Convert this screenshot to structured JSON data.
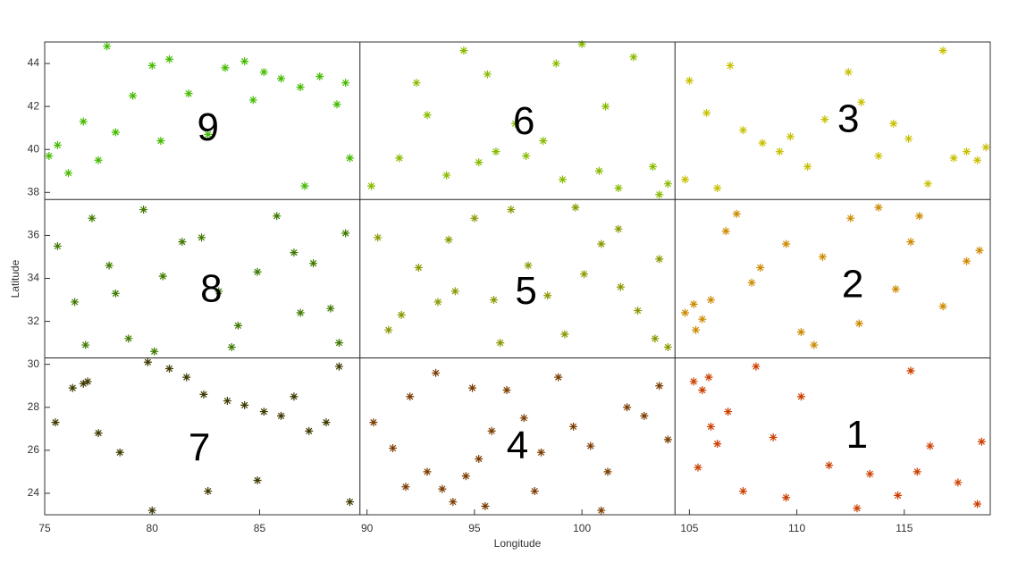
{
  "chart_data": {
    "type": "scatter",
    "xlabel": "Longitude",
    "ylabel": "Latitude",
    "xlim": [
      75,
      119
    ],
    "ylim": [
      23,
      45
    ],
    "xticks": [
      75,
      80,
      85,
      90,
      95,
      100,
      105,
      110,
      115
    ],
    "yticks": [
      24,
      26,
      28,
      30,
      32,
      34,
      36,
      38,
      40,
      42,
      44
    ],
    "region_boundaries": {
      "x": [
        89.67,
        104.33
      ],
      "y": [
        30.3,
        37.67
      ]
    },
    "annotations": [
      {
        "text": "1",
        "x": 112.8,
        "y": 26.6
      },
      {
        "text": "2",
        "x": 112.6,
        "y": 33.6
      },
      {
        "text": "3",
        "x": 112.4,
        "y": 41.3
      },
      {
        "text": "4",
        "x": 97.0,
        "y": 26.1
      },
      {
        "text": "5",
        "x": 97.4,
        "y": 33.3
      },
      {
        "text": "6",
        "x": 97.3,
        "y": 41.2
      },
      {
        "text": "7",
        "x": 82.2,
        "y": 26.0
      },
      {
        "text": "8",
        "x": 82.75,
        "y": 33.4
      },
      {
        "text": "9",
        "x": 82.6,
        "y": 40.9
      }
    ],
    "series": [
      {
        "color": "#cc3f00",
        "x": [
          105.2,
          105.6,
          105.9,
          106.3,
          105.4,
          106.8,
          107.5,
          108.1,
          108.9,
          110.2,
          111.5,
          112.8,
          113.4,
          114.7,
          115.3,
          116.2,
          117.5,
          118.6,
          118.4,
          106.0,
          109.5,
          115.6
        ],
        "values": [
          29.2,
          28.8,
          29.4,
          26.3,
          25.2,
          27.8,
          24.1,
          29.9,
          26.6,
          28.5,
          25.3,
          23.3,
          24.9,
          23.9,
          29.7,
          26.2,
          24.5,
          26.4,
          23.5,
          27.1,
          23.8,
          25.0
        ]
      },
      {
        "color": "#cc8a00",
        "x": [
          104.8,
          105.2,
          105.6,
          106.0,
          105.3,
          106.7,
          107.2,
          108.3,
          109.5,
          110.8,
          111.2,
          112.5,
          113.8,
          114.6,
          115.3,
          116.8,
          117.9,
          118.5,
          110.2,
          112.9,
          107.9,
          115.7
        ],
        "values": [
          32.4,
          32.8,
          32.1,
          33.0,
          31.6,
          36.2,
          37.0,
          34.5,
          35.6,
          30.9,
          35.0,
          36.8,
          37.3,
          33.5,
          35.7,
          32.7,
          34.8,
          35.3,
          31.5,
          31.9,
          33.8,
          36.9
        ]
      },
      {
        "color": "#c8c000",
        "x": [
          105.0,
          105.8,
          106.9,
          107.5,
          108.4,
          109.7,
          110.5,
          111.3,
          112.4,
          113.8,
          114.5,
          115.2,
          116.1,
          117.3,
          117.9,
          118.4,
          118.8,
          106.3,
          109.2,
          113.0,
          116.8,
          104.8
        ],
        "values": [
          43.2,
          41.7,
          43.9,
          40.9,
          40.3,
          40.6,
          39.2,
          41.4,
          43.6,
          39.7,
          41.2,
          40.5,
          38.4,
          39.6,
          39.9,
          39.5,
          40.1,
          38.2,
          39.9,
          42.2,
          44.6,
          38.6
        ]
      },
      {
        "color": "#7a3c00",
        "x": [
          90.3,
          91.2,
          92.0,
          92.8,
          93.5,
          94.0,
          94.6,
          95.2,
          95.8,
          96.5,
          97.3,
          98.1,
          98.9,
          99.6,
          100.4,
          101.2,
          102.1,
          102.9,
          103.6,
          104.0,
          93.2,
          95.5,
          97.8,
          100.9,
          91.8,
          94.9
        ],
        "values": [
          27.3,
          26.1,
          28.5,
          25.0,
          24.2,
          23.6,
          24.8,
          25.6,
          26.9,
          28.8,
          27.5,
          25.9,
          29.4,
          27.1,
          26.2,
          25.0,
          28.0,
          27.6,
          29.0,
          26.5,
          29.6,
          23.4,
          24.1,
          23.2,
          24.3,
          28.9
        ]
      },
      {
        "color": "#8a9800",
        "x": [
          90.5,
          91.6,
          92.4,
          93.3,
          94.1,
          95.0,
          95.9,
          96.7,
          97.5,
          98.4,
          99.2,
          100.1,
          100.9,
          101.7,
          102.6,
          103.4,
          104.0,
          91.0,
          93.8,
          96.2,
          99.7,
          101.8,
          103.6
        ],
        "values": [
          35.9,
          32.3,
          34.5,
          32.9,
          33.4,
          36.8,
          33.0,
          37.2,
          34.6,
          33.2,
          31.4,
          34.2,
          35.6,
          36.3,
          32.5,
          31.2,
          30.8,
          31.6,
          35.8,
          31.0,
          37.3,
          33.6,
          34.9
        ]
      },
      {
        "color": "#88bb00",
        "x": [
          90.2,
          91.5,
          92.3,
          93.7,
          94.5,
          95.2,
          96.0,
          96.9,
          97.4,
          98.2,
          99.1,
          100.0,
          100.8,
          101.7,
          102.4,
          103.3,
          104.0,
          92.8,
          98.8,
          101.1,
          95.6,
          103.6
        ],
        "values": [
          38.3,
          39.6,
          43.1,
          38.8,
          44.6,
          39.4,
          39.9,
          41.2,
          39.7,
          40.4,
          38.6,
          44.9,
          39.0,
          38.2,
          44.3,
          39.2,
          38.4,
          41.6,
          44.0,
          42.0,
          43.5,
          37.9
        ]
      },
      {
        "color": "#3e3a00",
        "x": [
          75.5,
          76.3,
          77.0,
          77.5,
          78.5,
          80.0,
          80.8,
          81.6,
          82.4,
          82.6,
          83.5,
          84.3,
          85.2,
          86.0,
          86.6,
          87.3,
          88.1,
          88.7,
          89.2,
          79.8,
          84.9,
          76.8
        ],
        "values": [
          27.3,
          28.9,
          29.2,
          26.8,
          25.9,
          23.2,
          29.8,
          29.4,
          28.6,
          24.1,
          28.3,
          28.1,
          27.8,
          27.6,
          28.5,
          26.9,
          27.3,
          29.9,
          23.6,
          30.1,
          24.6,
          29.1
        ]
      },
      {
        "color": "#3f7a00",
        "x": [
          75.6,
          76.4,
          77.2,
          78.0,
          78.9,
          79.6,
          80.5,
          81.4,
          82.3,
          83.1,
          84.0,
          84.9,
          85.8,
          86.6,
          87.5,
          88.3,
          89.0,
          76.9,
          80.1,
          83.7,
          86.9,
          88.7,
          78.3
        ],
        "values": [
          35.5,
          32.9,
          36.8,
          34.6,
          31.2,
          37.2,
          34.1,
          35.7,
          35.9,
          33.4,
          31.8,
          34.3,
          36.9,
          35.2,
          34.7,
          32.6,
          36.1,
          30.9,
          30.6,
          30.8,
          32.4,
          31.0,
          33.3
        ]
      },
      {
        "color": "#44bb00",
        "x": [
          75.2,
          75.6,
          76.1,
          76.8,
          77.5,
          78.3,
          79.1,
          80.0,
          80.8,
          81.7,
          82.6,
          83.4,
          84.3,
          85.2,
          86.0,
          86.9,
          87.8,
          88.6,
          89.2,
          77.9,
          80.4,
          84.7,
          87.1,
          89.0
        ],
        "values": [
          39.7,
          40.2,
          38.9,
          41.3,
          39.5,
          40.8,
          42.5,
          43.9,
          44.2,
          42.6,
          40.7,
          43.8,
          44.1,
          43.6,
          43.3,
          42.9,
          43.4,
          42.1,
          39.6,
          44.8,
          40.4,
          42.3,
          38.3,
          43.1
        ]
      }
    ]
  }
}
